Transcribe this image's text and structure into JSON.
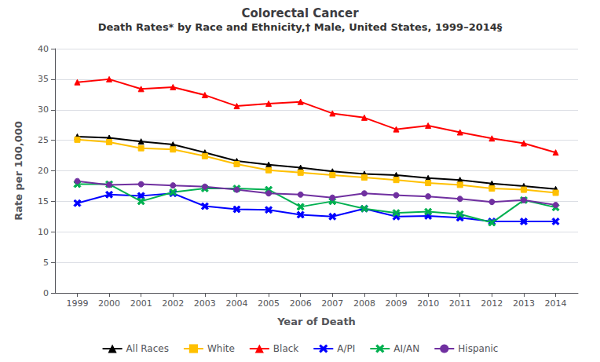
{
  "chart_data": {
    "type": "line",
    "title": "Colorectal Cancer",
    "subtitle": "Death Rates* by Race and Ethnicity,† Male, United States, 1999–2014§",
    "xlabel": "Year of Death",
    "ylabel": "Rate per 100,000",
    "x": [
      1999,
      2000,
      2001,
      2002,
      2003,
      2004,
      2005,
      2006,
      2007,
      2008,
      2009,
      2010,
      2011,
      2012,
      2013,
      2014
    ],
    "xlim": [
      1998.3,
      2014.7
    ],
    "xticks": [
      1999,
      2000,
      2001,
      2002,
      2003,
      2004,
      2005,
      2006,
      2007,
      2008,
      2009,
      2010,
      2011,
      2012,
      2013,
      2014
    ],
    "ylim": [
      0,
      40
    ],
    "yticks": [
      0,
      5,
      10,
      15,
      20,
      25,
      30,
      35,
      40
    ],
    "grid": true,
    "legend": "bottom",
    "series": [
      {
        "name": "All Races",
        "color": "#000000",
        "marker": "triangle",
        "values": [
          25.6,
          25.4,
          24.8,
          24.3,
          23.0,
          21.6,
          21.0,
          20.5,
          19.9,
          19.5,
          19.3,
          18.8,
          18.5,
          17.9,
          17.5,
          17.0
        ]
      },
      {
        "name": "White",
        "color": "#FFC000",
        "marker": "square",
        "values": [
          25.1,
          24.7,
          23.7,
          23.5,
          22.4,
          21.1,
          20.1,
          19.7,
          19.3,
          18.9,
          18.5,
          18.0,
          17.7,
          17.1,
          16.9,
          16.4
        ]
      },
      {
        "name": "Black",
        "color": "#FF0000",
        "marker": "triangle",
        "values": [
          34.5,
          35.0,
          33.4,
          33.7,
          32.4,
          30.6,
          31.0,
          31.3,
          29.4,
          28.7,
          26.8,
          27.4,
          26.3,
          25.3,
          24.5,
          23.0
        ]
      },
      {
        "name": "A/PI",
        "color": "#0000FF",
        "marker": "x",
        "values": [
          14.7,
          16.1,
          15.9,
          16.3,
          14.2,
          13.7,
          13.6,
          12.8,
          12.5,
          13.8,
          12.5,
          12.6,
          12.3,
          11.7,
          11.7,
          11.7
        ]
      },
      {
        "name": "AI/AN",
        "color": "#00B050",
        "marker": "x",
        "values": [
          17.8,
          17.8,
          15.0,
          16.5,
          17.1,
          17.1,
          16.9,
          14.1,
          15.0,
          13.8,
          13.1,
          13.3,
          12.9,
          11.5,
          15.2,
          14.0
        ]
      },
      {
        "name": "Hispanic",
        "color": "#7030A0",
        "marker": "circle",
        "values": [
          18.3,
          17.7,
          17.8,
          17.6,
          17.4,
          16.9,
          16.3,
          16.1,
          15.6,
          16.3,
          16.0,
          15.8,
          15.4,
          14.9,
          15.2,
          14.4
        ]
      }
    ]
  }
}
